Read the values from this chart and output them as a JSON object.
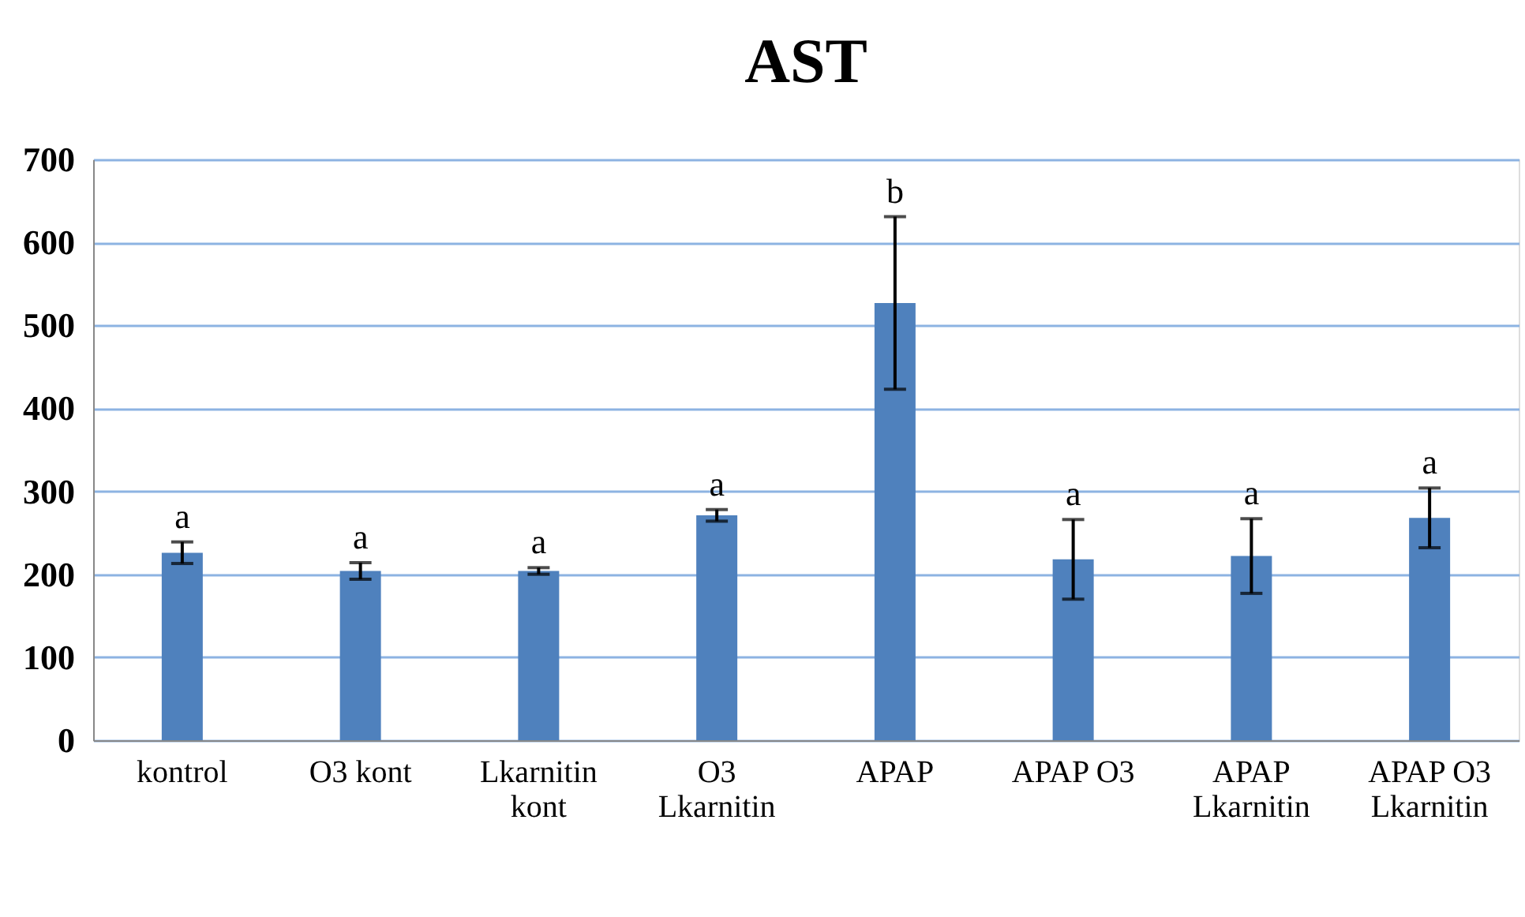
{
  "chart_data": {
    "type": "bar",
    "title": "AST",
    "categories": [
      "kontrol",
      "O3 kont",
      "Lkarnitin kont",
      "O3 Lkarnitin",
      "APAP",
      "APAP O3",
      "APAP Lkarnitin",
      "APAP O3 Lkarnitin"
    ],
    "values": [
      226,
      204,
      204,
      271,
      527,
      218,
      222,
      268
    ],
    "errors": [
      13,
      10,
      4,
      7,
      104,
      48,
      45,
      36
    ],
    "color": "#4f81bd",
    "ylim": [
      0,
      700
    ],
    "yticks": [
      0,
      100,
      200,
      300,
      400,
      500,
      600,
      700
    ],
    "grid": "y",
    "annotations": [
      {
        "text": "a",
        "x": "kontrol",
        "y": 239
      },
      {
        "text": "a",
        "x": "O3 kont",
        "y": 214
      },
      {
        "text": "a",
        "x": "Lkarnitin kont",
        "y": 208
      },
      {
        "text": "a",
        "x": "O3 Lkarnitin",
        "y": 278
      },
      {
        "text": "b",
        "x": "APAP",
        "y": 631
      },
      {
        "text": "a",
        "x": "APAP O3",
        "y": 266
      },
      {
        "text": "a",
        "x": "APAP Lkarnitin",
        "y": 267
      },
      {
        "text": "a",
        "x": "APAP O3 Lkarnitin",
        "y": 304
      }
    ]
  }
}
